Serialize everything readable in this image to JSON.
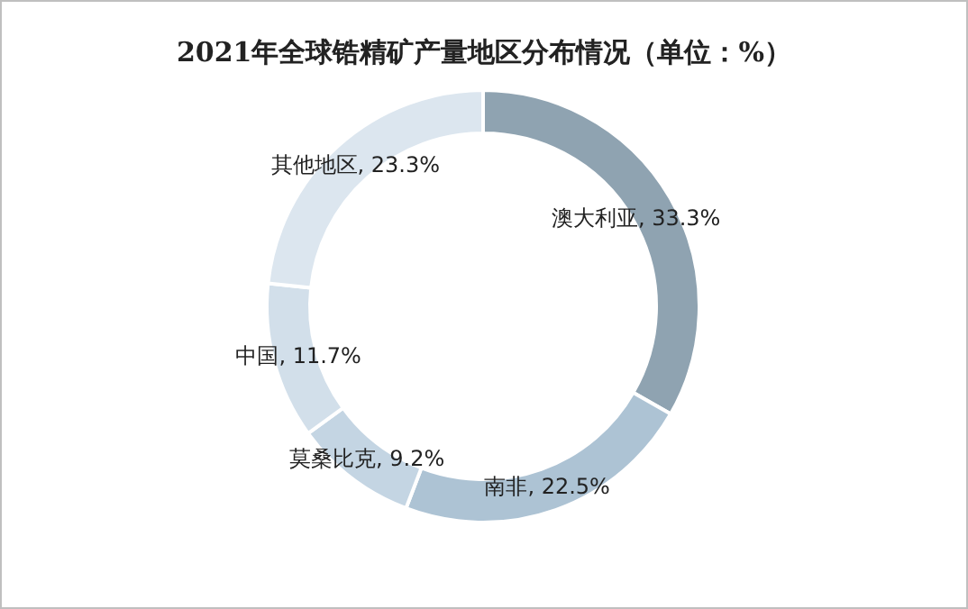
{
  "chart_data": {
    "type": "donut",
    "title": "2021年全球锆精矿产量地区分布情况（单位：%）",
    "categories": [
      "澳大利亚",
      "南非",
      "莫桑比克",
      "中国",
      "其他地区"
    ],
    "values": [
      33.3,
      22.5,
      9.2,
      11.7,
      23.3
    ],
    "value_labels": [
      "33.3%",
      "22.5%",
      "9.2%",
      "11.7%",
      "23.3%"
    ],
    "colors": [
      "#8fa3b1",
      "#adc3d4",
      "#c4d5e3",
      "#d2dfea",
      "#dce6ef"
    ]
  }
}
